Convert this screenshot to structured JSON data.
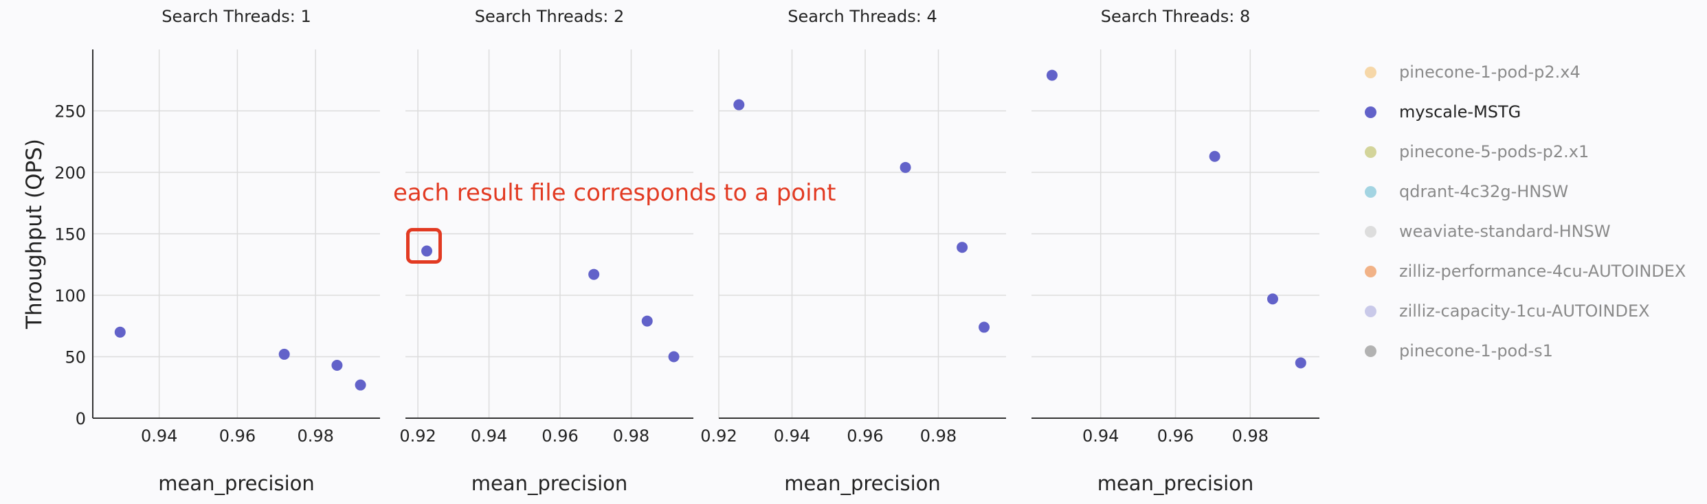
{
  "chart_data": {
    "type": "scatter",
    "ylabel": "Throughput (QPS)",
    "xlabel": "mean_precision",
    "ylim": [
      0,
      300
    ],
    "yticks": [
      "0",
      "50",
      "100",
      "150",
      "200",
      "250"
    ],
    "panels": [
      {
        "title": "Search Threads: 1",
        "xlim": [
          0.923,
          0.9965
        ],
        "xticks": [
          "0.94",
          "0.96",
          "0.98"
        ],
        "series": [
          {
            "name": "myscale-MSTG",
            "x": [
              0.93,
              0.972,
              0.9855,
              0.9915
            ],
            "y": [
              70,
              52,
              43,
              27
            ]
          }
        ]
      },
      {
        "title": "Search Threads: 2",
        "xlim": [
          0.9165,
          0.9975
        ],
        "xticks": [
          "0.92",
          "0.94",
          "0.96",
          "0.98"
        ],
        "series": [
          {
            "name": "myscale-MSTG",
            "x": [
              0.9225,
              0.9695,
              0.9845,
              0.992
            ],
            "y": [
              136,
              117,
              79,
              50
            ]
          }
        ]
      },
      {
        "title": "Search Threads: 4",
        "xlim": [
          0.92,
          0.9985
        ],
        "xticks": [
          "0.92",
          "0.94",
          "0.96",
          "0.98"
        ],
        "series": [
          {
            "name": "myscale-MSTG",
            "x": [
              0.9255,
              0.971,
              0.9865,
              0.9925
            ],
            "y": [
              255,
              204,
              139,
              74
            ]
          }
        ]
      },
      {
        "title": "Search Threads: 8",
        "xlim": [
          0.9215,
          0.9985
        ],
        "xticks": [
          "0.94",
          "0.96",
          "0.98"
        ],
        "series": [
          {
            "name": "myscale-MSTG",
            "x": [
              0.927,
              0.9705,
              0.986,
              0.9935
            ],
            "y": [
              279,
              213,
              97,
              45
            ]
          }
        ]
      }
    ],
    "legend": [
      {
        "name": "pinecone-1-pod-p2.x4",
        "color": "#f6d7a8",
        "active": false
      },
      {
        "name": "myscale-MSTG",
        "color": "#6262c9",
        "active": true
      },
      {
        "name": "pinecone-5-pods-p2.x1",
        "color": "#d3d49a",
        "active": false
      },
      {
        "name": "qdrant-4c32g-HNSW",
        "color": "#a3d4e2",
        "active": false
      },
      {
        "name": "weaviate-standard-HNSW",
        "color": "#dddddd",
        "active": false
      },
      {
        "name": "zilliz-performance-4cu-AUTOINDEX",
        "color": "#f1b287",
        "active": false
      },
      {
        "name": "zilliz-capacity-1cu-AUTOINDEX",
        "color": "#c9c9e9",
        "active": false
      },
      {
        "name": "pinecone-1-pod-s1",
        "color": "#b2b2b2",
        "active": false
      }
    ],
    "legend_position": "right",
    "grid": true,
    "point_color": "#6262c9"
  },
  "annotation": {
    "text": "each result file corresponds to a point",
    "color": "#e23a22",
    "target": "Search Threads: 2, first point"
  }
}
